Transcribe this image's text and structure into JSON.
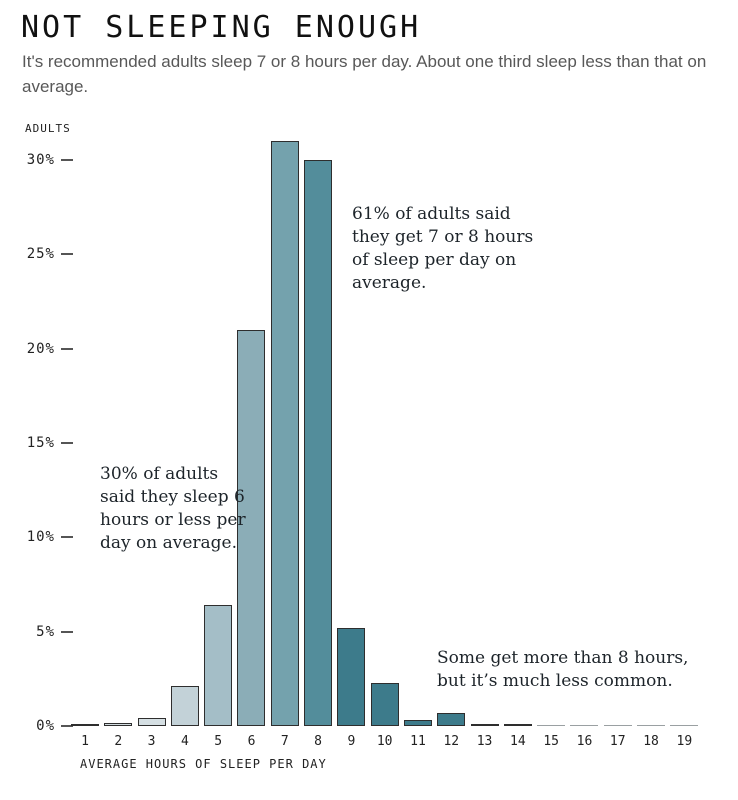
{
  "chart_data": {
    "type": "bar",
    "title": "NOT SLEEPING ENOUGH",
    "subtitle": "It's recommended adults sleep 7 or 8 hours per day. About one third sleep less than that on average.",
    "ylabel": "ADULTS",
    "xlabel": "AVERAGE HOURS OF SLEEP PER DAY",
    "unit": "%",
    "categories": [
      "1",
      "2",
      "3",
      "4",
      "5",
      "6",
      "7",
      "8",
      "9",
      "10",
      "11",
      "12",
      "13",
      "14",
      "15",
      "16",
      "17",
      "18",
      "19"
    ],
    "values": [
      0.05,
      0.15,
      0.4,
      2.1,
      6.4,
      21,
      31,
      30,
      5.2,
      2.3,
      0.3,
      0.7,
      0.1,
      0.05,
      0,
      0,
      0,
      0,
      0
    ],
    "yticks": [
      0,
      5,
      10,
      15,
      20,
      25,
      30
    ],
    "ylim": [
      0,
      31
    ],
    "grid": false,
    "legend": false,
    "bar_colors": [
      "#d8e0e3",
      "#d3dde1",
      "#d5dfe3",
      "#c3d2d8",
      "#a4bec7",
      "#8badb7",
      "#74a2ad",
      "#538d9b",
      "#3d7b8b",
      "#3d7b8b",
      "#3d7b8b",
      "#3d7b8b",
      "#3d7b8b",
      "#3d7b8b",
      "#3d7b8b",
      "#3d7b8b",
      "#3d7b8b",
      "#3d7b8b",
      "#3d7b8b"
    ],
    "bar_border_color": "#2e2e2e",
    "zero_line_color": "#9aa0a2",
    "annotations": [
      {
        "id": "seven-eight-hours",
        "text": "61% of adults said\nthey get 7 or 8 hours\nof sleep per day on\naverage."
      },
      {
        "id": "six-or-less-hours",
        "text": "30% of adults\nsaid they sleep 6\nhours or less per\nday on average."
      },
      {
        "id": "more-than-eight-hours",
        "text": "Some get more than 8 hours,\nbut it’s much less common."
      }
    ],
    "colors": {
      "subtitle_text": "#585858",
      "axis_text": "#222222",
      "annotation_text": "#1d242a"
    }
  }
}
